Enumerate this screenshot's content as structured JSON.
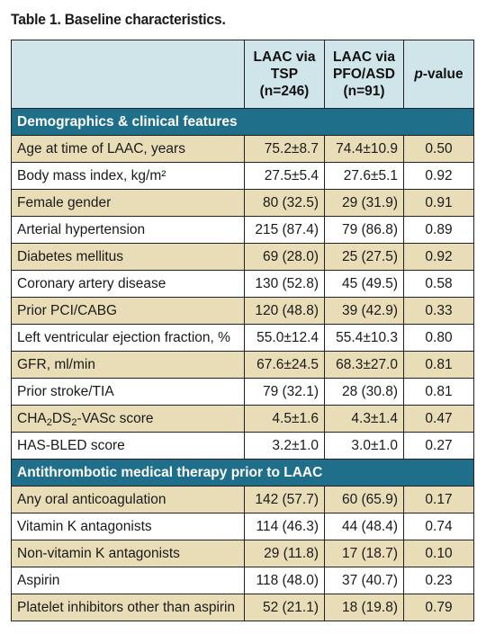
{
  "title": "Table 1. Baseline characteristics.",
  "header": {
    "col1": [
      "LAAC via",
      "TSP",
      "(n=246)"
    ],
    "col2": [
      "LAAC via",
      "PFO/ASD",
      "(n=91)"
    ],
    "col3_italic": "p",
    "col3_rest": "-value"
  },
  "sections": [
    {
      "title": "Demographics & clinical features",
      "rows": [
        {
          "label": "Age at time of LAAC, years",
          "tsp": "75.2±8.7",
          "pfo": "74.4±10.9",
          "p": "0.50"
        },
        {
          "label": "Body mass index, kg/m²",
          "tsp": "27.5±5.4",
          "pfo": "27.6±5.1",
          "p": "0.92"
        },
        {
          "label": "Female gender",
          "tsp": "80 (32.5)",
          "pfo": "29 (31.9)",
          "p": "0.91"
        },
        {
          "label": "Arterial hypertension",
          "tsp": "215 (87.4)",
          "pfo": "79 (86.8)",
          "p": "0.89"
        },
        {
          "label": "Diabetes mellitus",
          "tsp": "69 (28.0)",
          "pfo": "25 (27.5)",
          "p": "0.92"
        },
        {
          "label": "Coronary artery disease",
          "tsp": "130 (52.8)",
          "pfo": "45 (49.5)",
          "p": "0.58"
        },
        {
          "label": "Prior PCI/CABG",
          "tsp": "120 (48.8)",
          "pfo": "39 (42.9)",
          "p": "0.33"
        },
        {
          "label": "Left ventricular ejection fraction, %",
          "tsp": "55.0±12.4",
          "pfo": "55.4±10.3",
          "p": "0.80"
        },
        {
          "label": "GFR, ml/min",
          "tsp": "67.6±24.5",
          "pfo": "68.3±27.0",
          "p": "0.81"
        },
        {
          "label": "Prior stroke/TIA",
          "tsp": "79 (32.1)",
          "pfo": "28 (30.8)",
          "p": "0.81"
        },
        {
          "label_parts": [
            "CHA",
            "2",
            "DS",
            "2",
            "-VASc score"
          ],
          "tsp": "4.5±1.6",
          "pfo": "4.3±1.4",
          "p": "0.47"
        },
        {
          "label": "HAS-BLED score",
          "tsp": "3.2±1.0",
          "pfo": "3.0±1.0",
          "p": "0.27"
        }
      ]
    },
    {
      "title": "Antithrombotic medical therapy prior to LAAC",
      "rows": [
        {
          "label": "Any oral anticoagulation",
          "tsp": "142 (57.7)",
          "pfo": "60 (65.9)",
          "p": "0.17"
        },
        {
          "label": "Vitamin K antagonists",
          "tsp": "114 (46.3)",
          "pfo": "44 (48.4)",
          "p": "0.74"
        },
        {
          "label": "Non-vitamin K antagonists",
          "tsp": "29 (11.8)",
          "pfo": "17 (18.7)",
          "p": "0.10"
        },
        {
          "label": "Aspirin",
          "tsp": "118 (48.0)",
          "pfo": "37 (40.7)",
          "p": "0.23"
        },
        {
          "label": "Platelet inhibitors other than aspirin",
          "tsp": "52 (21.1)",
          "pfo": "18 (19.8)",
          "p": "0.79"
        }
      ]
    }
  ],
  "colors": {
    "header_bg": "#cfe5ea",
    "section_bg": "#1f6f8b",
    "shaded_row_bg": "#e9ddb8",
    "plain_row_bg": "#ffffff",
    "border": "#222222"
  }
}
